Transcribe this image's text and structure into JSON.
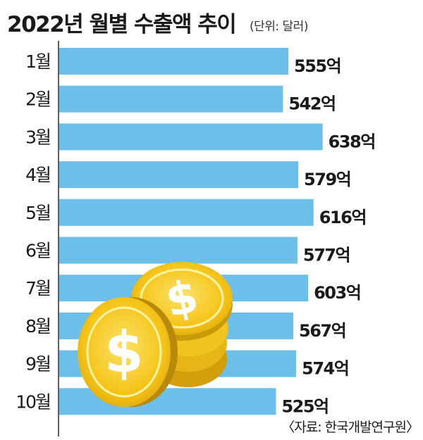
{
  "chart_data": {
    "type": "bar",
    "orientation": "horizontal",
    "title": "2022년 월별 수출액 추이",
    "unit_note": "(단위: 달러)",
    "categories": [
      "1월",
      "2월",
      "3월",
      "4월",
      "5월",
      "6월",
      "7월",
      "8월",
      "9월",
      "10월"
    ],
    "values": [
      555,
      542,
      638,
      579,
      616,
      577,
      603,
      567,
      574,
      525
    ],
    "value_labels": [
      "555억",
      "542억",
      "638억",
      "579억",
      "616억",
      "577억",
      "603억",
      "567억",
      "574억",
      "525억"
    ],
    "source": "〈자료: 한국개발연구원〉",
    "xlim": [
      0,
      640
    ],
    "grid": false,
    "bar_color": "#6cbfe9",
    "background_color": "#ffffff"
  },
  "decoration": {
    "icon": "gold-dollar-coins-icon",
    "coin_color": "#f5c419",
    "coin_dark_color": "#c99a0a",
    "coin_light_color": "#f9db4d"
  }
}
